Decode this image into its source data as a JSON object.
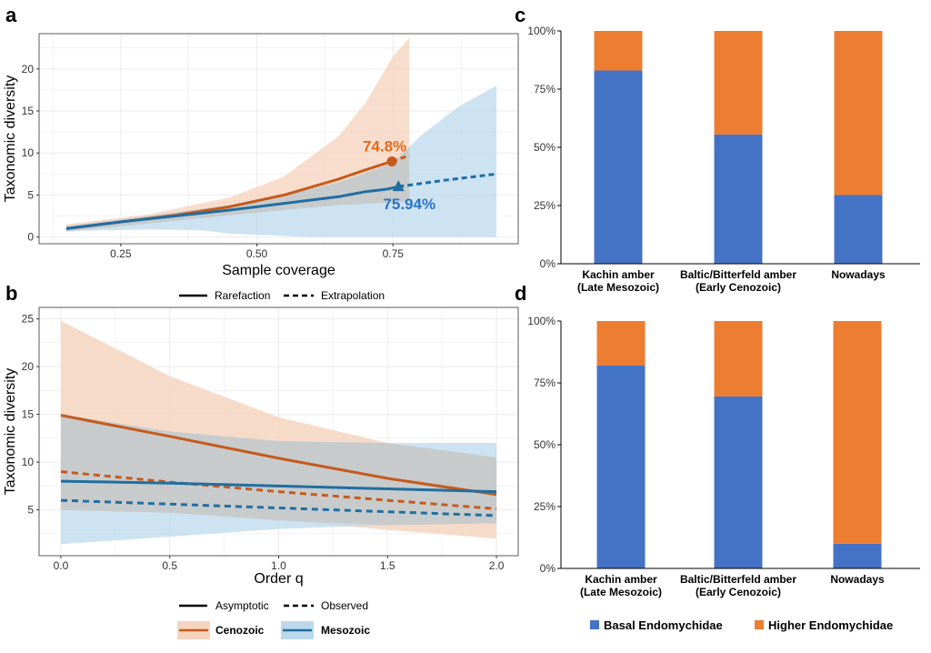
{
  "colors": {
    "cenozoic": "#c55a1c",
    "mesozoic": "#1f6ea0",
    "ceno_band": "#f6d5bf",
    "meso_band": "#bcd9ec",
    "overlap": "#c8c8c8",
    "basal": "#4472c4",
    "higher": "#ed7d31"
  },
  "panels": {
    "a": "a",
    "b": "b",
    "c": "c",
    "d": "d"
  },
  "legend_ab": {
    "rarefaction": "Rarefaction",
    "extrapolation": "Extrapolation",
    "asymptotic": "Asymptotic",
    "observed": "Observed",
    "cenozoic": "Cenozoic",
    "mesozoic": "Mesozoic"
  },
  "legend_cd": {
    "basal": "Basal Endomychidae",
    "higher": "Higher Endomychidae"
  },
  "chart_data": [
    {
      "id": "a",
      "type": "line",
      "xlabel": "Sample coverage",
      "ylabel": "Taxonomic diversity",
      "xlim": [
        0.1,
        0.98
      ],
      "ylim": [
        -0.8,
        24.2
      ],
      "xticks": [
        0.25,
        0.5,
        0.75
      ],
      "xtick_labels": [
        "0.25",
        "0.50",
        "0.75"
      ],
      "yticks": [
        0,
        5,
        10,
        15,
        20
      ],
      "grid": true,
      "annotations": [
        {
          "text": "74.8%",
          "series": "Cenozoic"
        },
        {
          "text": "75.94%",
          "series": "Mesozoic"
        }
      ],
      "series": [
        {
          "name": "Cenozoic",
          "rarefaction": {
            "x": [
              0.15,
              0.25,
              0.35,
              0.45,
              0.55,
              0.65,
              0.7,
              0.748
            ],
            "y": [
              1.0,
              1.8,
              2.6,
              3.6,
              5.0,
              6.9,
              8.0,
              9.0
            ]
          },
          "extrapolation": {
            "x": [
              0.748,
              0.78
            ],
            "y": [
              9.0,
              9.7
            ]
          },
          "reference_point": {
            "x": 0.748,
            "y": 9.0
          },
          "band_upper": {
            "x": [
              0.15,
              0.3,
              0.45,
              0.55,
              0.65,
              0.7,
              0.75,
              0.78
            ],
            "y": [
              1.5,
              2.7,
              4.7,
              7.2,
              12.0,
              16.0,
              21.5,
              23.7
            ]
          },
          "band_lower": {
            "x": [
              0.15,
              0.3,
              0.45,
              0.55,
              0.65,
              0.7,
              0.75,
              0.78
            ],
            "y": [
              0.6,
              1.6,
              2.6,
              3.2,
              3.8,
              4.0,
              4.1,
              4.2
            ]
          }
        },
        {
          "name": "Mesozoic",
          "rarefaction": {
            "x": [
              0.15,
              0.25,
              0.35,
              0.45,
              0.55,
              0.65,
              0.7,
              0.74,
              0.76
            ],
            "y": [
              1.0,
              1.8,
              2.5,
              3.2,
              4.0,
              4.8,
              5.4,
              5.7,
              6.0
            ]
          },
          "extrapolation": {
            "x": [
              0.76,
              0.85,
              0.94
            ],
            "y": [
              6.0,
              6.8,
              7.5
            ]
          },
          "reference_point": {
            "x": 0.76,
            "y": 6.0
          },
          "band_upper": {
            "x": [
              0.15,
              0.3,
              0.45,
              0.55,
              0.65,
              0.75,
              0.8,
              0.87,
              0.94
            ],
            "y": [
              1.3,
              2.5,
              3.8,
              5.0,
              6.5,
              8.8,
              12.0,
              15.5,
              18.0
            ]
          },
          "band_lower": {
            "x": [
              0.15,
              0.3,
              0.4,
              0.45,
              0.6,
              0.94
            ],
            "y": [
              0.7,
              0.9,
              0.8,
              0.4,
              0.0,
              0.0
            ]
          }
        }
      ]
    },
    {
      "id": "b",
      "type": "line",
      "xlabel": "Order q",
      "ylabel": "Taxonomic diversity",
      "xlim": [
        -0.1,
        2.1
      ],
      "ylim": [
        0.2,
        26.2
      ],
      "xticks": [
        0,
        0.5,
        1,
        1.5,
        2
      ],
      "xtick_labels": [
        "0.0",
        "0.5",
        "1.0",
        "1.5",
        "2.0"
      ],
      "yticks": [
        5,
        10,
        15,
        20,
        25
      ],
      "grid": true,
      "series": [
        {
          "name": "Cenozoic",
          "x": [
            0,
            0.5,
            1,
            1.5,
            2
          ],
          "asymptotic": [
            14.9,
            12.7,
            10.4,
            8.3,
            6.6
          ],
          "observed": [
            9.0,
            7.9,
            6.9,
            6.0,
            5.1
          ],
          "band_upper": [
            24.8,
            19.0,
            14.7,
            12.0,
            10.5
          ],
          "band_lower": [
            5.0,
            4.7,
            3.9,
            2.9,
            2.0
          ]
        },
        {
          "name": "Mesozoic",
          "x": [
            0,
            0.5,
            1,
            1.5,
            2
          ],
          "asymptotic": [
            8.0,
            7.8,
            7.5,
            7.2,
            6.9
          ],
          "observed": [
            6.0,
            5.6,
            5.2,
            4.8,
            4.4
          ],
          "band_upper": [
            15.0,
            13.2,
            12.2,
            12.0,
            12.0
          ],
          "band_lower": [
            1.4,
            2.2,
            3.0,
            3.4,
            3.6
          ]
        }
      ]
    },
    {
      "id": "c",
      "type": "bar",
      "stacked": true,
      "categories": [
        [
          "Kachin amber",
          "(Late Mesozoic)"
        ],
        [
          "Baltic/Bitterfeld amber",
          "(Early Cenozoic)"
        ],
        [
          "Nowadays"
        ]
      ],
      "ylim": [
        0,
        100
      ],
      "yticks": [
        0,
        25,
        50,
        75,
        100
      ],
      "ytick_labels": [
        "0%",
        "25%",
        "50%",
        "75%",
        "100%"
      ],
      "series": [
        {
          "name": "Basal Endomychidae",
          "values": [
            83,
            55.5,
            29.5
          ]
        },
        {
          "name": "Higher Endomychidae",
          "values": [
            17,
            44.5,
            70.5
          ]
        }
      ]
    },
    {
      "id": "d",
      "type": "bar",
      "stacked": true,
      "categories": [
        [
          "Kachin amber",
          "(Late Mesozoic)"
        ],
        [
          "Baltic/Bitterfeld amber",
          "(Early Cenozoic)"
        ],
        [
          "Nowadays"
        ]
      ],
      "ylim": [
        0,
        100
      ],
      "yticks": [
        0,
        25,
        50,
        75,
        100
      ],
      "ytick_labels": [
        "0%",
        "25%",
        "50%",
        "75%",
        "100%"
      ],
      "series": [
        {
          "name": "Basal Endomychidae",
          "values": [
            82,
            69.5,
            10
          ]
        },
        {
          "name": "Higher Endomychidae",
          "values": [
            18,
            30.5,
            90
          ]
        }
      ]
    }
  ]
}
